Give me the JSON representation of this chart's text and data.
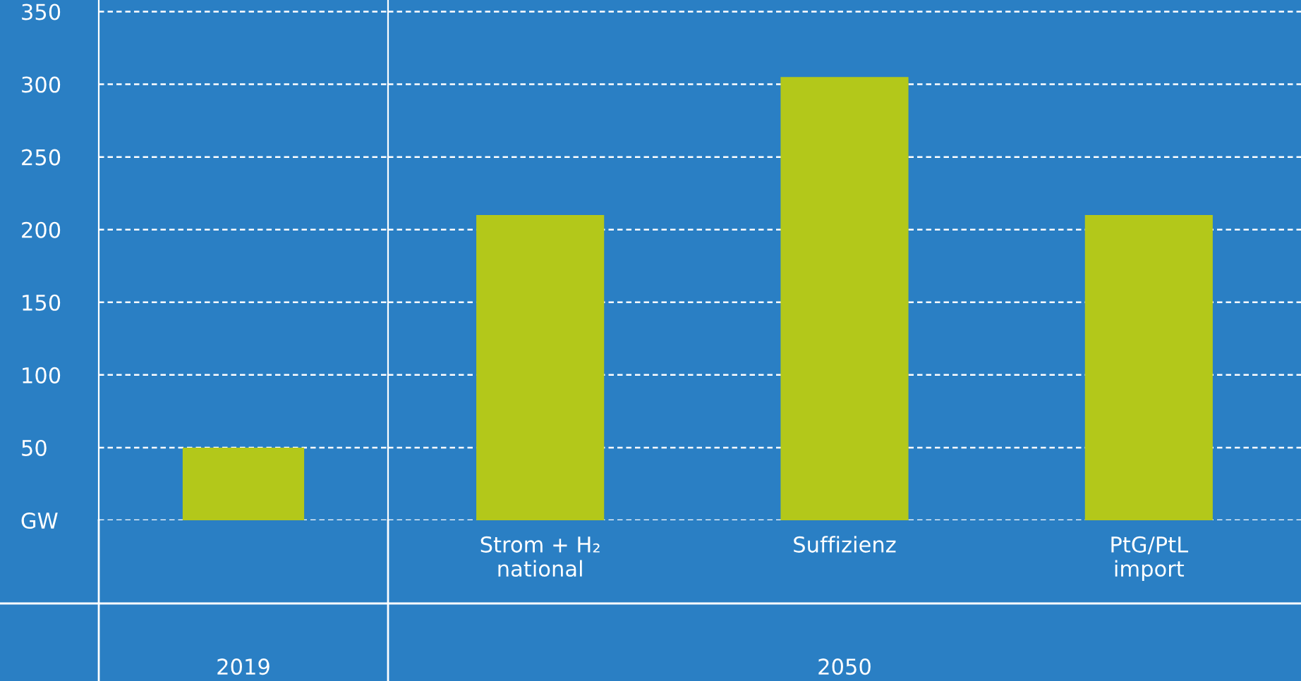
{
  "chart_data": [
    {
      "type": "bar",
      "categories": [
        null
      ],
      "values": [
        50
      ],
      "colors": [
        "#b3c81a"
      ],
      "xlabel": "2019",
      "ylim": [
        0,
        358
      ],
      "yticks": [
        {
          "value": 0,
          "label": "GW"
        },
        50,
        100,
        150,
        200,
        250,
        300,
        350
      ],
      "grid": "y"
    },
    {
      "type": "bar",
      "categories": [
        "Strom + H₂\nnational",
        "Suffizienz",
        "PtG/PtL\nimport"
      ],
      "values": [
        210,
        305,
        210
      ],
      "colors": [
        "#b3c81a",
        "#b3c81a",
        "#b3c81a"
      ],
      "xlabel": "2050",
      "ylim": [
        0,
        358
      ],
      "yticks": [
        0,
        50,
        100,
        150,
        200,
        250,
        300,
        350
      ],
      "grid": "y",
      "tick_labels": "x"
    }
  ]
}
